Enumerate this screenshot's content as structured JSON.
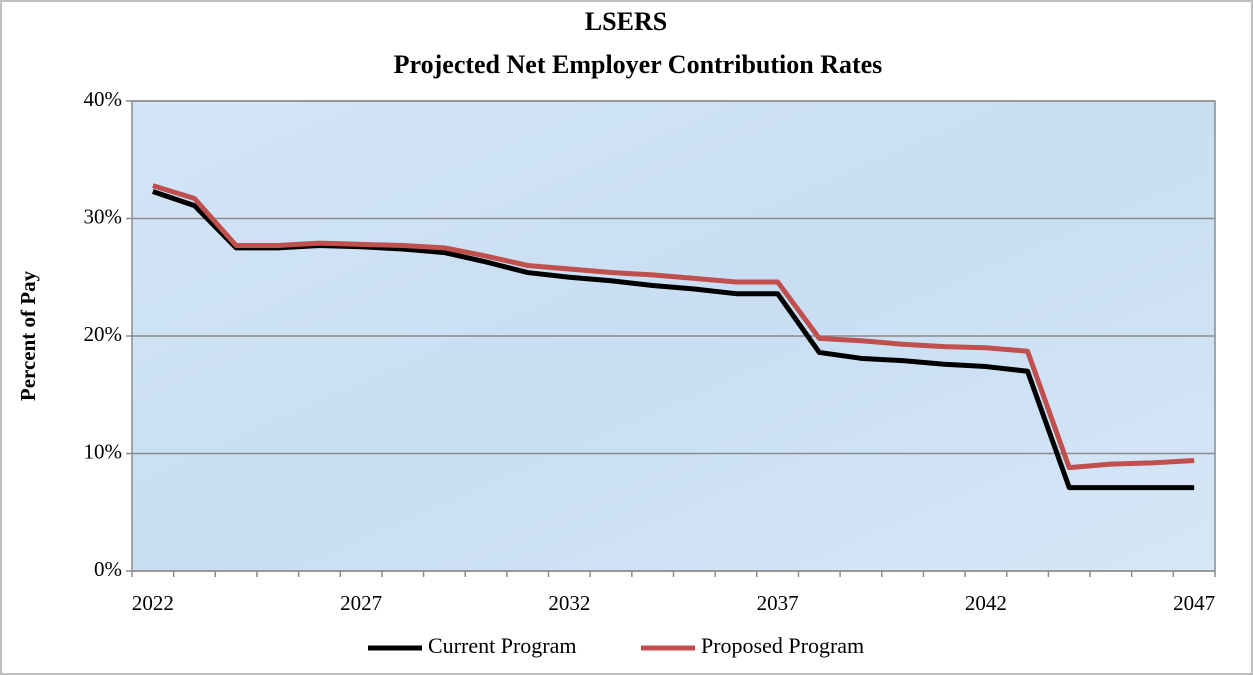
{
  "chart_data": {
    "type": "line",
    "title": "LSERS",
    "subtitle": "Projected Net Employer Contribution Rates",
    "y_label": "Percent of Pay",
    "categories": [
      "2022",
      null,
      null,
      null,
      null,
      "2027",
      null,
      null,
      null,
      null,
      "2032",
      null,
      null,
      null,
      null,
      "2037",
      null,
      null,
      null,
      null,
      "2042",
      null,
      null,
      null,
      null,
      "2047"
    ],
    "series": [
      {
        "name": "Current Program",
        "color": "#000000",
        "values": [
          32.3,
          31.1,
          27.5,
          27.5,
          27.7,
          27.6,
          27.4,
          27.1,
          26.3,
          25.4,
          25.0,
          24.7,
          24.3,
          24.0,
          23.6,
          23.6,
          18.6,
          18.1,
          17.9,
          17.6,
          17.4,
          17.0,
          7.1,
          7.1,
          7.1,
          7.1
        ]
      },
      {
        "name": "Proposed Program",
        "color": "#c0504d",
        "values": [
          32.8,
          31.7,
          27.7,
          27.7,
          27.9,
          27.8,
          27.7,
          27.5,
          26.8,
          26.0,
          25.7,
          25.4,
          25.2,
          24.9,
          24.6,
          24.6,
          19.8,
          19.6,
          19.3,
          19.1,
          19.0,
          18.7,
          8.8,
          9.1,
          9.2,
          9.4
        ]
      }
    ],
    "ylim": [
      0,
      40
    ],
    "yticks": [
      {
        "value": 0,
        "label": "0%"
      },
      {
        "value": 10,
        "label": "10%"
      },
      {
        "value": 20,
        "label": "20%"
      },
      {
        "value": 30,
        "label": "30%"
      },
      {
        "value": 40,
        "label": "40%"
      }
    ],
    "grid": true,
    "legend": "bottom"
  }
}
